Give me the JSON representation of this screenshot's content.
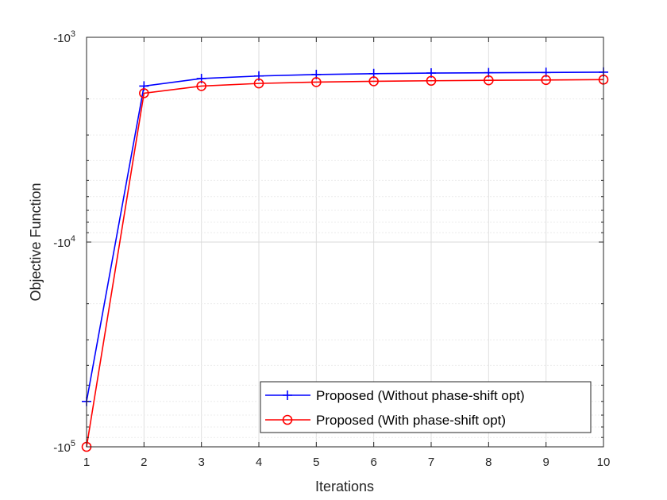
{
  "chart_data": {
    "type": "line",
    "title": "",
    "xlabel": "Iterations",
    "ylabel": "Objective Function",
    "xlim": [
      1,
      10
    ],
    "ylim": [
      -100000,
      -1000
    ],
    "yscale": "log (negative values, magnitude increases downward)",
    "x": [
      1,
      2,
      3,
      4,
      5,
      6,
      7,
      8,
      9,
      10
    ],
    "x_tick_labels": [
      "1",
      "2",
      "3",
      "4",
      "5",
      "6",
      "7",
      "8",
      "9",
      "10"
    ],
    "y_tick_labels": [
      {
        "base": "-10",
        "exp": "3"
      },
      {
        "base": "-10",
        "exp": "4"
      },
      {
        "base": "-10",
        "exp": "5"
      }
    ],
    "grid": true,
    "legend_position": "bottom-right",
    "series": [
      {
        "name": "Proposed (Without phase-shift opt)",
        "color": "#0000ff",
        "marker": "plus",
        "values": [
          -60000,
          -1730,
          -1590,
          -1545,
          -1520,
          -1505,
          -1495,
          -1490,
          -1485,
          -1480
        ]
      },
      {
        "name": "Proposed (With phase-shift opt)",
        "color": "#ff0000",
        "marker": "circle",
        "values": [
          -105000,
          -1875,
          -1730,
          -1680,
          -1655,
          -1640,
          -1630,
          -1622,
          -1616,
          -1610
        ]
      }
    ]
  }
}
